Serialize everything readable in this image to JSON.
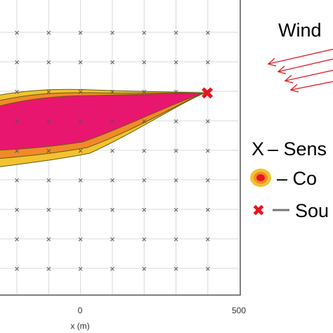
{
  "chart_data": {
    "type": "diagram",
    "xlabel": "x (m)",
    "x_tick_labels": [
      "0",
      "500"
    ],
    "sensor_marker": "×",
    "source_marker": "✖",
    "wind": {
      "label": "Wind",
      "arrow_color": "#e0202a",
      "direction": "left"
    },
    "plume": {
      "outer_color": "#f2c230",
      "middle_color": "#f08a2a",
      "inner_color": "#e8166f"
    },
    "legend": [
      {
        "symbol": "X",
        "label": "– Sens"
      },
      {
        "symbol": "plume-ellipse-icon",
        "label": "– Co"
      },
      {
        "symbol": "red-cross-icon",
        "label": "Sou"
      }
    ],
    "colors": {
      "grid": "#d9d9d9",
      "axis": "#555555",
      "source": "#e8141e"
    }
  }
}
